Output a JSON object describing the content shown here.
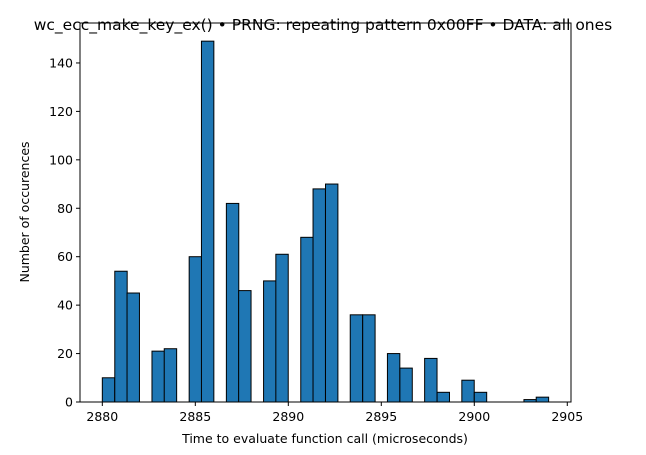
{
  "chart_data": {
    "type": "bar",
    "title": "wc_ecc_make_key_ex() • PRNG: repeating pattern 0x00FF • DATA: all ones",
    "xlabel": "Time to evaluate function call (microseconds)",
    "ylabel": "Number of occurences",
    "xlim": [
      2878.8,
      2905.2
    ],
    "ylim": [
      0,
      156.5
    ],
    "bin_width": 0.6667,
    "xticks": [
      2880,
      2885,
      2890,
      2895,
      2900,
      2905
    ],
    "yticks": [
      0,
      20,
      40,
      60,
      80,
      100,
      120,
      140
    ],
    "bins": [
      {
        "x": 2880.0,
        "value": 10
      },
      {
        "x": 2880.67,
        "value": 54
      },
      {
        "x": 2881.33,
        "value": 45
      },
      {
        "x": 2882.67,
        "value": 21
      },
      {
        "x": 2883.33,
        "value": 22
      },
      {
        "x": 2884.67,
        "value": 60
      },
      {
        "x": 2885.33,
        "value": 149
      },
      {
        "x": 2886.67,
        "value": 82
      },
      {
        "x": 2887.33,
        "value": 46
      },
      {
        "x": 2888.67,
        "value": 50
      },
      {
        "x": 2889.33,
        "value": 61
      },
      {
        "x": 2890.67,
        "value": 68
      },
      {
        "x": 2891.33,
        "value": 88
      },
      {
        "x": 2892.0,
        "value": 90
      },
      {
        "x": 2893.33,
        "value": 36
      },
      {
        "x": 2894.0,
        "value": 36
      },
      {
        "x": 2895.33,
        "value": 20
      },
      {
        "x": 2896.0,
        "value": 14
      },
      {
        "x": 2897.33,
        "value": 18
      },
      {
        "x": 2898.0,
        "value": 4
      },
      {
        "x": 2899.33,
        "value": 9
      },
      {
        "x": 2900.0,
        "value": 4
      },
      {
        "x": 2901.33,
        "value": 0
      },
      {
        "x": 2902.67,
        "value": 1
      },
      {
        "x": 2903.33,
        "value": 2
      }
    ],
    "bar_color": "#1f77b4",
    "edge_color": "#000000",
    "grid": false,
    "legend": "none"
  }
}
